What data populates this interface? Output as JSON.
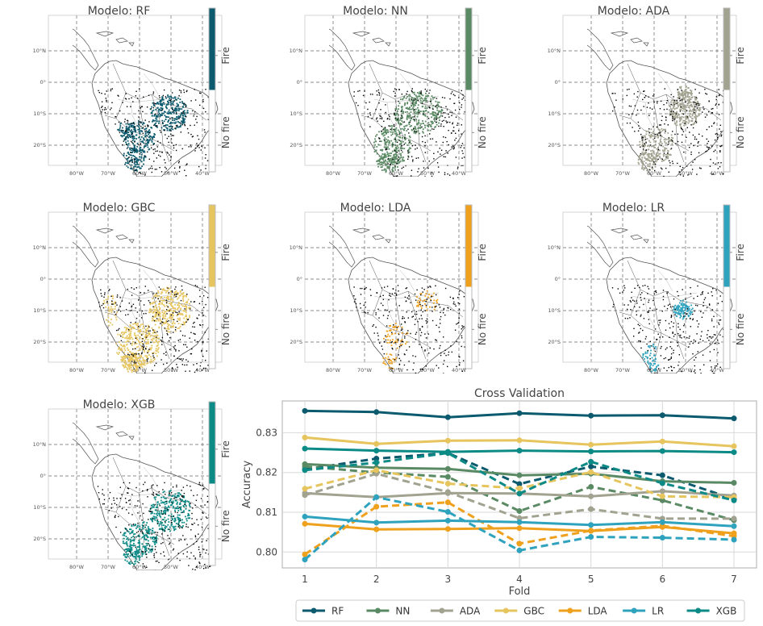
{
  "colors": {
    "RF": "#0b5a6e",
    "NN": "#5a8a64",
    "ADA": "#a2a290",
    "GBC": "#e6c45e",
    "LDA": "#efa01c",
    "LR": "#2fa3be",
    "XGB": "#0b8a86",
    "points_dark": "#000000",
    "map_line": "#555555"
  },
  "maps": [
    {
      "title": "Modelo: RF",
      "model": "RF"
    },
    {
      "title": "Modelo: NN",
      "model": "NN"
    },
    {
      "title": "Modelo: ADA",
      "model": "ADA"
    },
    {
      "title": "Modelo: GBC",
      "model": "GBC"
    },
    {
      "title": "Modelo: LDA",
      "model": "LDA"
    },
    {
      "title": "Modelo: LR",
      "model": "LR"
    },
    {
      "title": "Modelo: XGB",
      "model": "XGB"
    }
  ],
  "map_axes": {
    "lat_ticks": [
      "10°N",
      "0°",
      "10°S",
      "20°S"
    ],
    "lon_ticks": [
      "80°W",
      "70°W",
      "60°W",
      "50°W",
      "40°W"
    ]
  },
  "colorbar_labels": {
    "high": "Fire",
    "low": "No fire"
  },
  "chart_data": {
    "type": "line",
    "title": "Cross Validation",
    "xlabel": "Fold",
    "ylabel": "Accuracy",
    "x": [
      1,
      2,
      3,
      4,
      5,
      6,
      7
    ],
    "ylim": [
      0.796,
      0.838
    ],
    "yticks": [
      "0.80",
      "0.81",
      "0.82",
      "0.83"
    ],
    "grid": true,
    "legend_position": "bottom",
    "series": [
      {
        "name": "RF",
        "solid": [
          0.8355,
          0.8352,
          0.8339,
          0.8349,
          0.8343,
          0.8344,
          0.8336
        ],
        "dashed": [
          0.8208,
          0.8235,
          0.8249,
          0.8171,
          0.8215,
          0.8193,
          0.8133
        ]
      },
      {
        "name": "NN",
        "solid": [
          0.8221,
          0.8212,
          0.8209,
          0.8193,
          0.8197,
          0.8178,
          0.8174
        ],
        "dashed": [
          0.8215,
          0.82,
          0.8189,
          0.8103,
          0.8164,
          0.813,
          0.808
        ]
      },
      {
        "name": "ADA",
        "solid": [
          0.8148,
          0.8138,
          0.8148,
          0.8147,
          0.814,
          0.8153,
          0.8142
        ],
        "dashed": [
          0.8143,
          0.8197,
          0.8151,
          0.8085,
          0.8108,
          0.8084,
          0.8084
        ]
      },
      {
        "name": "GBC",
        "solid": [
          0.8288,
          0.8272,
          0.828,
          0.8281,
          0.827,
          0.8278,
          0.8266
        ],
        "dashed": [
          0.8159,
          0.8206,
          0.8172,
          0.816,
          0.8201,
          0.814,
          0.8138
        ]
      },
      {
        "name": "LDA",
        "solid": [
          0.8071,
          0.8057,
          0.8058,
          0.806,
          0.8053,
          0.8063,
          0.8047
        ],
        "dashed": [
          0.7994,
          0.8114,
          0.8125,
          0.8021,
          0.8054,
          0.8066,
          0.804
        ]
      },
      {
        "name": "LR",
        "solid": [
          0.8089,
          0.8074,
          0.8079,
          0.8075,
          0.8068,
          0.8075,
          0.8065
        ],
        "dashed": [
          0.7981,
          0.8138,
          0.8101,
          0.8004,
          0.8038,
          0.8036,
          0.8031
        ]
      },
      {
        "name": "XGB",
        "solid": [
          0.826,
          0.8255,
          0.8252,
          0.8255,
          0.8253,
          0.8254,
          0.8251
        ],
        "dashed": [
          0.8206,
          0.8225,
          0.8249,
          0.8147,
          0.8227,
          0.8173,
          0.813
        ]
      }
    ]
  }
}
